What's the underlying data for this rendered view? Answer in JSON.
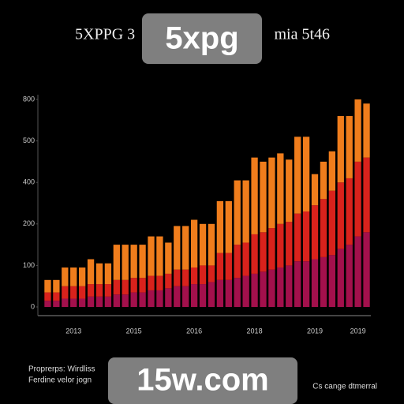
{
  "chart_data": {
    "type": "stacked_bar",
    "title_parts": [
      "5XPPG 3",
      "mia 5t46"
    ],
    "categories": [
      null,
      null,
      null,
      "2013",
      null,
      null,
      null,
      null,
      null,
      null,
      "2015",
      null,
      null,
      null,
      null,
      null,
      null,
      "2016",
      null,
      null,
      null,
      null,
      null,
      null,
      "2018",
      null,
      null,
      null,
      null,
      null,
      null,
      "2019",
      null,
      null,
      null,
      null,
      "2019",
      null
    ],
    "series": [
      {
        "color": "#a3104c",
        "values": [
          15,
          15,
          20,
          20,
          20,
          25,
          25,
          25,
          30,
          30,
          35,
          35,
          40,
          40,
          45,
          50,
          50,
          55,
          55,
          60,
          65,
          65,
          70,
          75,
          80,
          85,
          90,
          95,
          100,
          110,
          110,
          115,
          120,
          125,
          140,
          150,
          170,
          180
        ]
      },
      {
        "color": "#d9221c",
        "values": [
          20,
          20,
          30,
          30,
          30,
          30,
          30,
          30,
          35,
          35,
          35,
          35,
          35,
          35,
          35,
          40,
          40,
          40,
          45,
          40,
          65,
          65,
          80,
          80,
          95,
          95,
          100,
          105,
          105,
          115,
          120,
          130,
          140,
          155,
          160,
          160,
          180,
          180
        ]
      },
      {
        "color": "#f07d1c",
        "values": [
          30,
          30,
          45,
          45,
          45,
          60,
          50,
          50,
          85,
          85,
          80,
          80,
          95,
          95,
          75,
          105,
          105,
          115,
          100,
          100,
          125,
          125,
          155,
          150,
          185,
          170,
          170,
          170,
          150,
          185,
          180,
          75,
          90,
          95,
          160,
          150,
          150,
          130
        ]
      }
    ],
    "ylim": [
      0,
      500
    ],
    "yticks": [
      0,
      100,
      200,
      {
        "value": 300,
        "label": "400"
      },
      {
        "value": 400,
        "label": "500"
      },
      {
        "value": 500,
        "label": "800"
      }
    ],
    "notes": [
      "Proprerps: Wirdliss",
      "Ferdine velor jogn"
    ],
    "source": "Cs cange dtmerral",
    "watermarks": [
      "5xpg",
      "15w.com"
    ]
  }
}
